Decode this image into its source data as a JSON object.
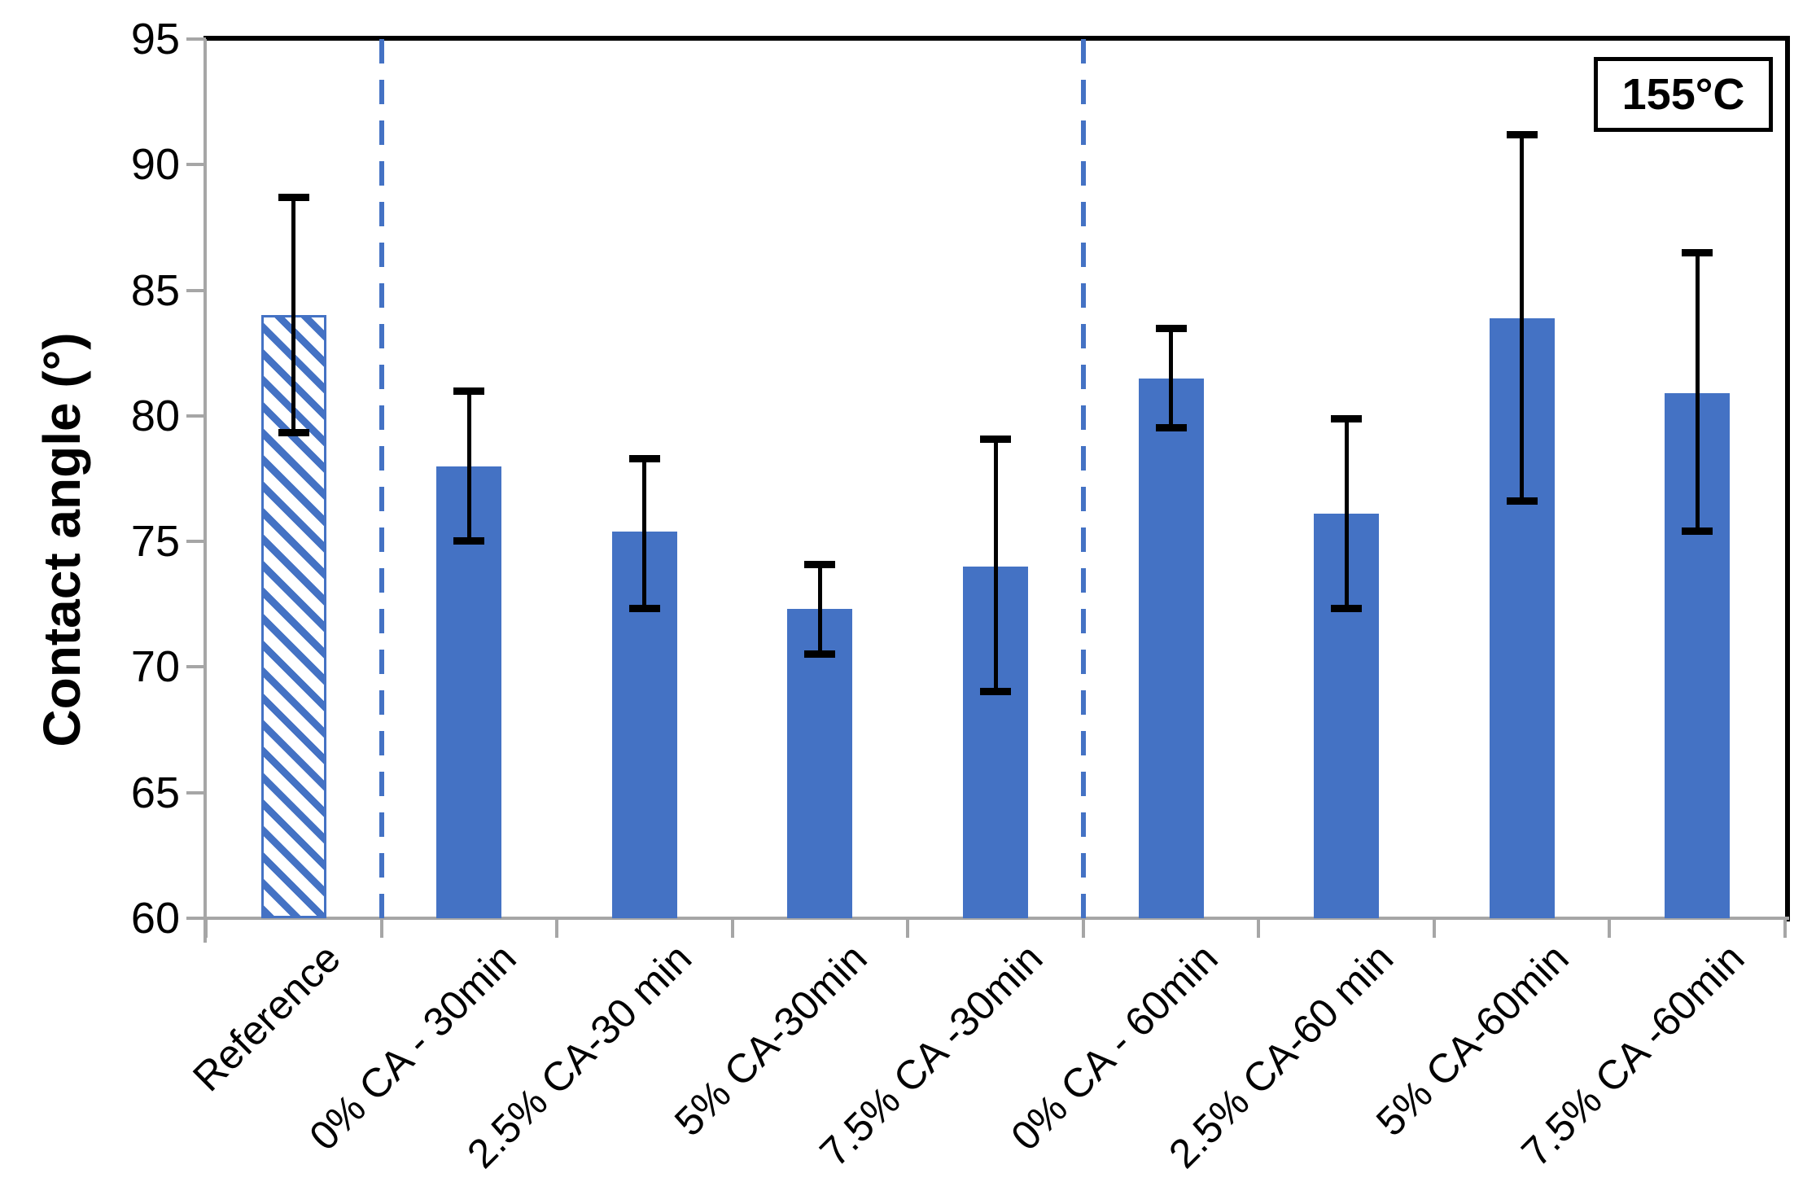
{
  "chart_data": {
    "type": "bar",
    "title": "",
    "xlabel": "",
    "ylabel": "Contact angle (°)",
    "annotation": "155°C",
    "ylim": [
      60,
      95
    ],
    "yticks": [
      60,
      65,
      70,
      75,
      80,
      85,
      90,
      95
    ],
    "grid": false,
    "legend": "none",
    "categories": [
      "Reference",
      "0% CA - 30min",
      "2.5% CA-30 min",
      "5% CA-30min",
      "7.5% CA -30min",
      "0% CA - 60min",
      "2.5% CA-60 min",
      "5% CA-60min",
      "7.5% CA -60min"
    ],
    "values": [
      84.0,
      78.0,
      75.4,
      72.3,
      74.0,
      81.5,
      76.1,
      83.9,
      80.9
    ],
    "error_low": [
      79.3,
      75.0,
      72.3,
      70.5,
      69.0,
      79.5,
      72.3,
      76.6,
      75.4
    ],
    "error_high": [
      88.7,
      81.0,
      78.3,
      74.1,
      79.1,
      83.5,
      79.9,
      91.2,
      86.5
    ],
    "bar_styles": [
      "hatched",
      "solid",
      "solid",
      "solid",
      "solid",
      "solid",
      "solid",
      "solid",
      "solid"
    ],
    "separator_boundaries": [
      1,
      5
    ],
    "colors": {
      "bar_fill": "#4472C4",
      "hatch_background": "#ffffff",
      "error_bar": "#000000",
      "axis_line": "#a6a6a6",
      "plot_border": "#000000",
      "separator": "#4472C4",
      "text": "#000000"
    }
  }
}
